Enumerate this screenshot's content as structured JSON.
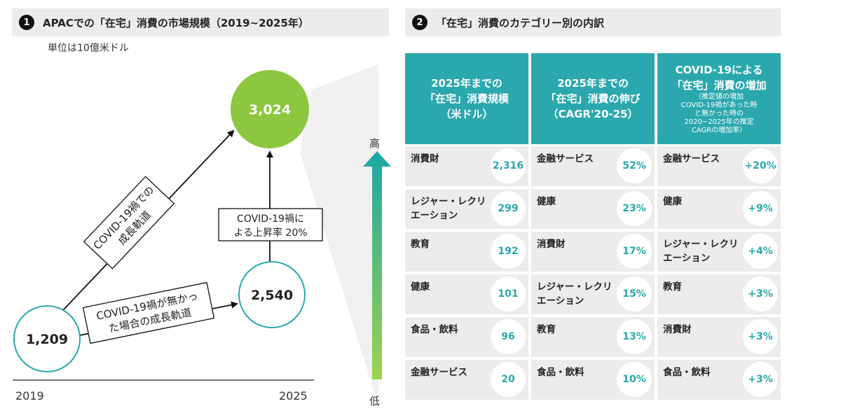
{
  "section1": {
    "number": "1",
    "title": "APACでの「在宅」消費の市場規模（2019~2025年）",
    "unit": "単位は10億米ドル"
  },
  "section2": {
    "number": "2",
    "title": "「在宅」消費のカテゴリー別の内訳"
  },
  "chart_data": [
    {
      "type": "diagram",
      "title": "APACでの「在宅」消費の市場規模（2019~2025年）",
      "unit": "単位は10億米ドル",
      "x": [
        "2019",
        "2025"
      ],
      "series": [
        {
          "name": "COVID-19禍での成長軌道",
          "values": [
            1209,
            3024
          ]
        },
        {
          "name": "COVID-19禍が無かった場合の成長軌道",
          "values": [
            1209,
            2540
          ]
        }
      ],
      "labels": {
        "start": "1,209",
        "covid": "3,024",
        "no_covid": "2,540",
        "covid_path_line1": "COVID-19禍での",
        "covid_path_line2": "成長軌道",
        "no_covid_path_line1": "COVID-19禍が無かっ",
        "no_covid_path_line2": "た場合の成長軌道",
        "uplift_line1": "COVID-19禍に",
        "uplift_line2": "よる上昇率 20%",
        "year_start": "2019",
        "year_end": "2025"
      },
      "colors": {
        "covid": "#8dc63f",
        "outline": "#2aa8ae"
      }
    },
    {
      "type": "table",
      "title": "「在宅」消費のカテゴリー別の内訳",
      "scale": {
        "high": "高",
        "low": "低"
      },
      "columns": [
        {
          "header_lines": [
            "2025年までの",
            "「在宅」消費規模",
            "（米ドル）"
          ],
          "sub_lines": [],
          "rows": [
            {
              "label": "消費財",
              "value": "2,316"
            },
            {
              "label": "レジャー・レクリエーション",
              "value": "299"
            },
            {
              "label": "教育",
              "value": "192"
            },
            {
              "label": "健康",
              "value": "101"
            },
            {
              "label": "食品・飲料",
              "value": "96"
            },
            {
              "label": "金融サービス",
              "value": "20"
            }
          ]
        },
        {
          "header_lines": [
            "2025年までの",
            "「在宅」消費の伸び",
            "（CAGR'20-25）"
          ],
          "sub_lines": [],
          "rows": [
            {
              "label": "金融サービス",
              "value": "52%"
            },
            {
              "label": "健康",
              "value": "23%"
            },
            {
              "label": "消費財",
              "value": "17%"
            },
            {
              "label": "レジャー・レクリエーション",
              "value": "15%"
            },
            {
              "label": "教育",
              "value": "13%"
            },
            {
              "label": "食品・飲料",
              "value": "10%"
            }
          ]
        },
        {
          "header_lines": [
            "COVID-19による",
            "「在宅」消費の増加"
          ],
          "sub_lines": [
            "（推定値の増加",
            "COVID-19禍があった時",
            "と無かった時の",
            "2020~2025年の推定",
            "CAGRの増加率）"
          ],
          "rows": [
            {
              "label": "金融サービス",
              "value": "+20%"
            },
            {
              "label": "健康",
              "value": "+9%"
            },
            {
              "label": "レジャー・レクリエーション",
              "value": "+4%"
            },
            {
              "label": "教育",
              "value": "+3%"
            },
            {
              "label": "消費財",
              "value": "+3%"
            },
            {
              "label": "食品・飲料",
              "value": "+3%"
            }
          ]
        }
      ]
    }
  ]
}
